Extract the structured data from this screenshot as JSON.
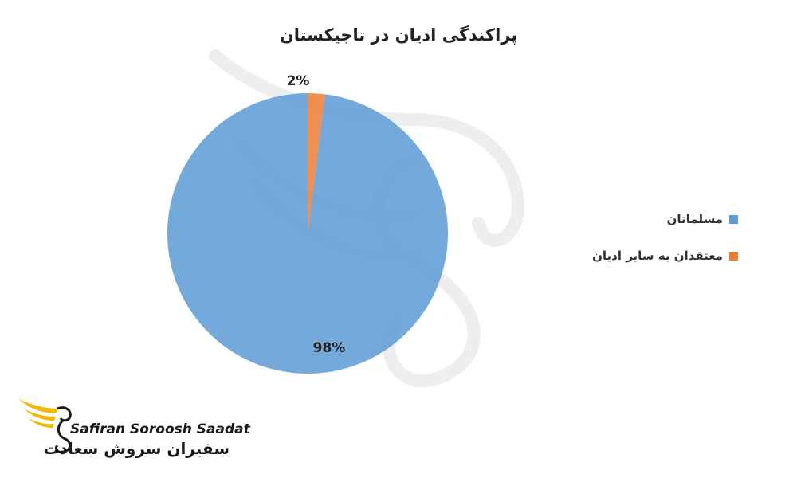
{
  "chart_data": {
    "type": "pie",
    "title": "پراکندگی ادیان در تاجیکستان",
    "categories": [
      "مسلمانان",
      "معتقدان به سایر ادیان"
    ],
    "values": [
      98,
      2
    ],
    "data_labels": [
      "98%",
      "2%"
    ],
    "colors": [
      "#5B9BD5",
      "#ED7D31"
    ],
    "legend_position": "right"
  },
  "logo": {
    "name_en": "Safiran Soroosh Saadat",
    "name_fa": "سفیران سروش سعادت"
  }
}
